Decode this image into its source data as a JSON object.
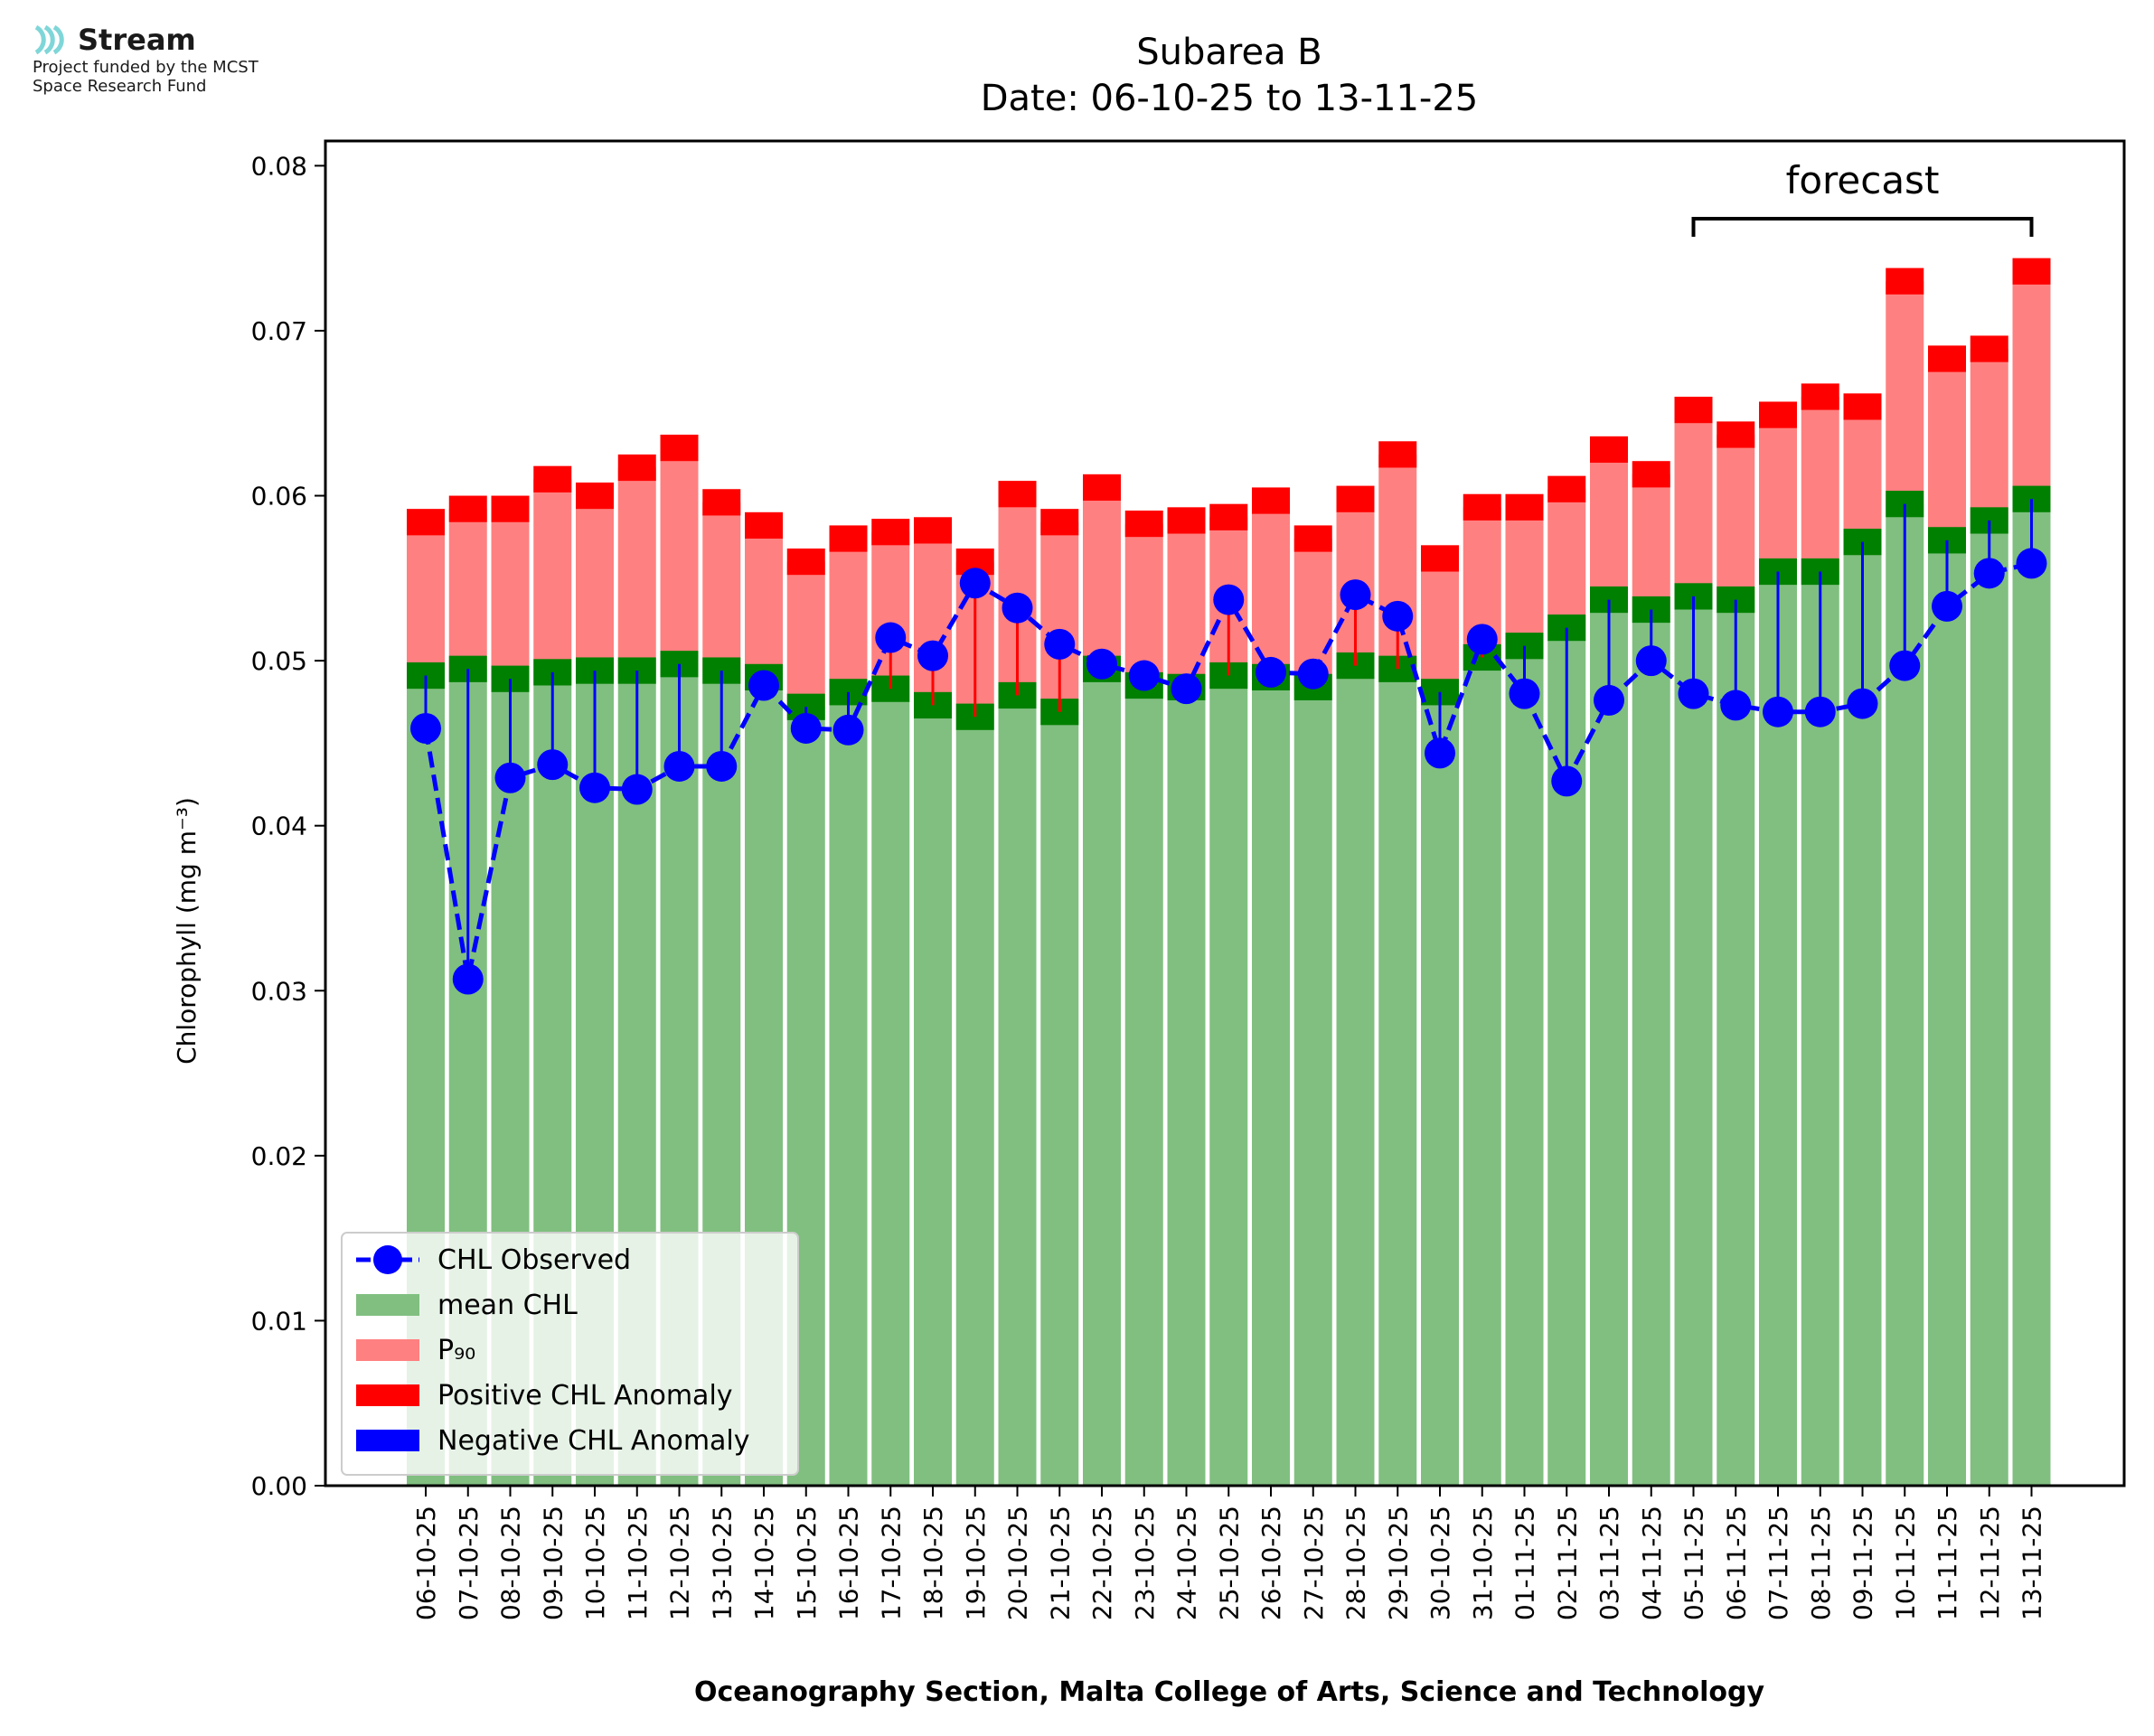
{
  "logo": {
    "brand": "Stream",
    "funding_line1": "Project funded by the MCST",
    "funding_line2": "Space Research Fund"
  },
  "colors": {
    "mean_fill": "#80bf80",
    "p90_fill": "#ff8080",
    "positive_anomaly": "#ff0000",
    "negative_anomaly": "#0000ff",
    "mean_band": "#008000",
    "observed": "#0000ff"
  },
  "chart_data": {
    "type": "bar",
    "title": "Subarea B",
    "subtitle": "Date: 06-10-25 to 13-11-25",
    "xlabel": "Oceanography Section, Malta College of Arts, Science and Technology",
    "ylabel": "Chlorophyll (mg m⁻³)",
    "ylim": [
      0,
      0.0815
    ],
    "yticks": [
      "0.00",
      "0.01",
      "0.02",
      "0.03",
      "0.04",
      "0.05",
      "0.06",
      "0.07",
      "0.08"
    ],
    "categories": [
      "06-10-25",
      "07-10-25",
      "08-10-25",
      "09-10-25",
      "10-10-25",
      "11-10-25",
      "12-10-25",
      "13-10-25",
      "14-10-25",
      "15-10-25",
      "16-10-25",
      "17-10-25",
      "18-10-25",
      "19-10-25",
      "20-10-25",
      "21-10-25",
      "22-10-25",
      "23-10-25",
      "24-10-25",
      "25-10-25",
      "26-10-25",
      "27-10-25",
      "28-10-25",
      "29-10-25",
      "30-10-25",
      "31-10-25",
      "01-11-25",
      "02-11-25",
      "03-11-25",
      "04-11-25",
      "05-11-25",
      "06-11-25",
      "07-11-25",
      "08-11-25",
      "09-11-25",
      "10-11-25",
      "11-11-25",
      "12-11-25",
      "13-11-25"
    ],
    "series": [
      {
        "name": "mean CHL",
        "values": [
          0.0491,
          0.0495,
          0.0489,
          0.0493,
          0.0494,
          0.0494,
          0.0498,
          0.0494,
          0.049,
          0.0472,
          0.0481,
          0.0483,
          0.0473,
          0.0466,
          0.0479,
          0.0469,
          0.0495,
          0.0485,
          0.0484,
          0.0491,
          0.049,
          0.0484,
          0.0497,
          0.0495,
          0.0481,
          0.0502,
          0.0509,
          0.052,
          0.0537,
          0.0531,
          0.0539,
          0.0537,
          0.0554,
          0.0554,
          0.0572,
          0.0595,
          0.0573,
          0.0585,
          0.0598
        ]
      },
      {
        "name": "P₉₀",
        "values": [
          0.0584,
          0.0592,
          0.0592,
          0.061,
          0.06,
          0.0617,
          0.0629,
          0.0596,
          0.0582,
          0.056,
          0.0574,
          0.0578,
          0.0579,
          0.056,
          0.0601,
          0.0584,
          0.0605,
          0.0583,
          0.0585,
          0.0587,
          0.0597,
          0.0574,
          0.0598,
          0.0625,
          0.0562,
          0.0593,
          0.0593,
          0.0604,
          0.0628,
          0.0613,
          0.0652,
          0.0637,
          0.0649,
          0.066,
          0.0654,
          0.073,
          0.0683,
          0.0689,
          0.0736
        ]
      },
      {
        "name": "CHL Observed",
        "values": [
          0.0459,
          0.0307,
          0.0429,
          0.0437,
          0.0423,
          0.0422,
          0.0436,
          0.0436,
          0.0485,
          0.0459,
          0.0458,
          0.0514,
          0.0503,
          0.0547,
          0.0532,
          0.051,
          0.0498,
          0.0491,
          0.0483,
          0.0537,
          0.0493,
          0.0492,
          0.054,
          0.0527,
          0.0444,
          0.0513,
          0.048,
          0.0427,
          0.0476,
          0.05,
          0.048,
          0.0473,
          0.0469,
          0.0469,
          0.0474,
          0.0497,
          0.0533,
          0.0553,
          0.0559
        ]
      }
    ],
    "legend": {
      "position": "lower-left",
      "entries": [
        "CHL Observed",
        "mean CHL",
        "P₉₀",
        "Positive CHL Anomaly",
        "Negative CHL Anomaly"
      ]
    },
    "annotation": {
      "text": "forecast",
      "from": "05-11-25",
      "to": "13-11-25"
    },
    "grid": false
  }
}
